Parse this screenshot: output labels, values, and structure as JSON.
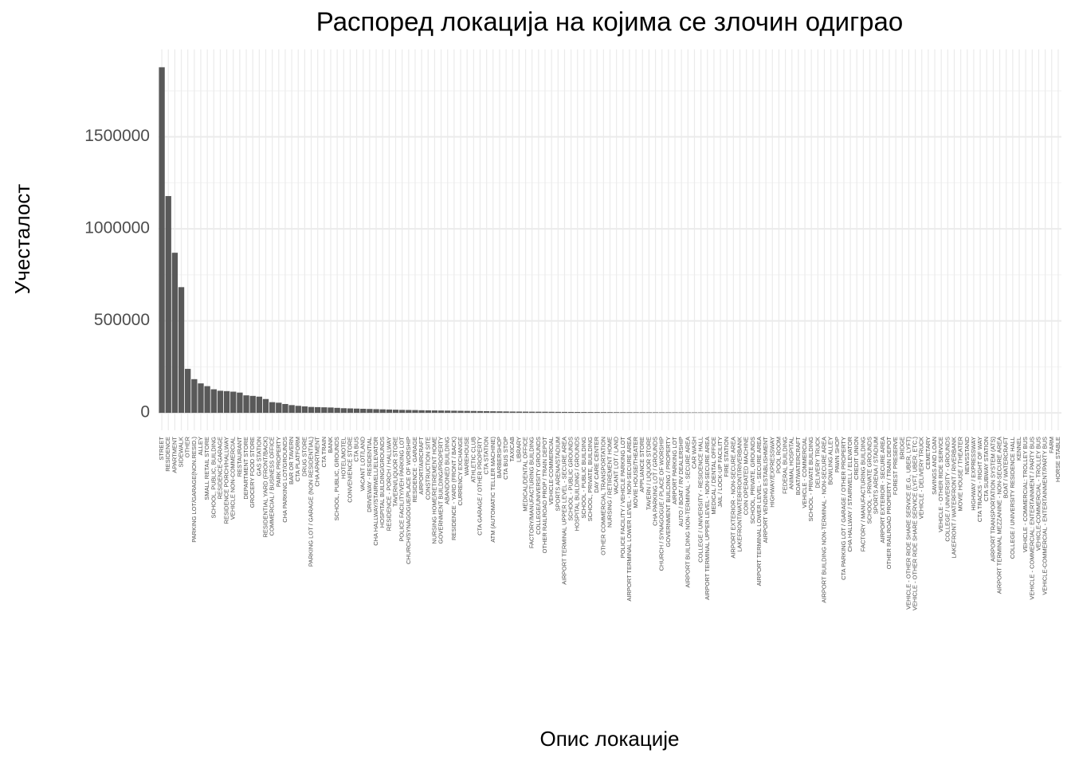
{
  "chart_data": {
    "type": "bar",
    "title": "Распоред локација на којима се злочин одиграо",
    "xlabel": "Опис локације",
    "ylabel": "Учесталост",
    "color": "#595959",
    "grid": true,
    "ylim": [
      -95000,
      1975000
    ],
    "yticks": [
      0,
      500000,
      1000000,
      1500000
    ],
    "categories": [
      "STREET",
      "RESIDENCE",
      "APARTMENT",
      "SIDEWALK",
      "OTHER",
      "PARKING LOT/GARAGE(NON.RESID.)",
      "ALLEY",
      "SMALL RETAIL STORE",
      "SCHOOL, PUBLIC, BUILDING",
      "RESIDENCE-GARAGE",
      "RESIDENCE PORCH/HALLWAY",
      "VEHICLE NON-COMMERCIAL",
      "RESTAURANT",
      "DEPARTMENT STORE",
      "GROCERY FOOD STORE",
      "GAS STATION",
      "RESIDENTIAL YARD (FRONT/BACK)",
      "COMMERCIAL / BUSINESS OFFICE",
      "PARK PROPERTY",
      "CHA PARKING LOT/GROUNDS",
      "BAR OR TAVERN",
      "CTA PLATFORM",
      "DRUG STORE",
      "PARKING LOT / GARAGE (NON RESIDENTIAL)",
      "CHA APARTMENT",
      "CTA TRAIN",
      "BANK",
      "SCHOOL, PUBLIC, GROUNDS",
      "HOTEL/MOTEL",
      "CONVENIENCE STORE",
      "CTA BUS",
      "VACANT LOT/LAND",
      "DRIVEWAY - RESIDENTIAL",
      "CHA HALLWAY/STAIRWELL/ELEVATOR",
      "HOSPITAL BUILDING/GROUNDS",
      "RESIDENCE - PORCH / HALLWAY",
      "TAVERN/LIQUOR STORE",
      "POLICE FACILITY/VEH PARKING LOT",
      "CHURCH/SYNAGOGUE/PLACE OF WORSHIP",
      "RESIDENCE - GARAGE",
      "AIRPORT/AIRCRAFT",
      "CONSTRUCTION SITE",
      "NURSING HOME/RETIREMENT HOME",
      "GOVERNMENT BUILDING/PROPERTY",
      "ABANDONED BUILDING",
      "RESIDENCE - YARD (FRONT / BACK)",
      "CURRENCY EXCHANGE",
      "WAREHOUSE",
      "ATHLETIC CLUB",
      "CTA GARAGE / OTHER PROPERTY",
      "CTA STATION",
      "ATM (AUTOMATIC TELLER MACHINE)",
      "BARBERSHOP",
      "CTA BUS STOP",
      "TAXICAB",
      "LIBRARY",
      "MEDICAL/DENTAL OFFICE",
      "FACTORY/MANUFACTURING BUILDING",
      "COLLEGE/UNIVERSITY GROUNDS",
      "OTHER RAILROAD PROP / TRAIN DEPOT",
      "VEHICLE-COMMERCIAL",
      "SPORTS ARENA/STADIUM",
      "AIRPORT TERMINAL UPPER LEVEL - SECURE AREA",
      "SCHOOL - PUBLIC GROUNDS",
      "HOSPITAL BUILDING / GROUNDS",
      "SCHOOL - PUBLIC BUILDING",
      "SCHOOL, PRIVATE, BUILDING",
      "DAY CARE CENTER",
      "OTHER COMMERCIAL TRANSPORTATION",
      "NURSING / RETIREMENT HOME",
      "VACANT LOT / LAND",
      "POLICE FACILITY / VEHICLE PARKING LOT",
      "AIRPORT TERMINAL LOWER LEVEL - NON-SECURE AREA",
      "MOVIE HOUSE/THEATER",
      "APPLIANCE STORE",
      "TAVERN / LIQUOR STORE",
      "CHA PARKING LOT / GROUNDS",
      "CHURCH / SYNAGOGUE / PLACE OF WORSHIP",
      "GOVERNMENT BUILDING / PROPERTY",
      "AIRPORT PARKING LOT",
      "AUTO / BOAT / RV DEALERSHIP",
      "AIRPORT BUILDING NON-TERMINAL - SECURE AREA",
      "CAR WASH",
      "COLLEGE / UNIVERSITY - RESIDENCE HALL",
      "AIRPORT TERMINAL UPPER LEVEL - NON-SECURE AREA",
      "MEDICAL / DENTAL OFFICE",
      "JAIL / LOCK-UP FACILITY",
      "FIRE STATION",
      "AIRPORT EXTERIOR - NON-SECURE AREA",
      "LAKEFRONT/WATERFRONT/RIVERBANK",
      "COIN OPERATED MACHINE",
      "SCHOOL, PRIVATE, GROUNDS",
      "AIRPORT TERMINAL LOWER LEVEL - SECURE AREA",
      "AIRPORT VENDING ESTABLISHMENT",
      "HIGHWAY/EXPRESSWAY",
      "POOL ROOM",
      "FEDERAL BUILDING",
      "ANIMAL HOSPITAL",
      "BOAT/WATERCRAFT",
      "VEHICLE - COMMERCIAL",
      "SCHOOL - PRIVATE BUILDING",
      "DELIVERY TRUCK",
      "AIRPORT BUILDING NON-TERMINAL - NON-SECURE AREA",
      "BOWLING ALLEY",
      "PAWN SHOP",
      "CTA PARKING LOT / GARAGE / OTHER PROPERTY",
      "CHA HALLWAY / STAIRWELL / ELEVATOR",
      "CREDIT UNION",
      "FACTORY / MANUFACTURING BUILDING",
      "SCHOOL - PRIVATE GROUNDS",
      "SPORTS ARENA / STADIUM",
      "AIRPORT EXTERIOR - SECURE AREA",
      "OTHER RAILROAD PROPERTY / TRAIN DEPOT",
      "FOREST PRESERVE",
      "BRIDGE",
      "VEHICLE - OTHER RIDE SHARE SERVICE (E.G., UBER, LYFT)",
      "VEHICLE - OTHER RIDE SHARE SERVICE (LYFT, UBER, ETC.)",
      "VEHICLE - DELIVERY TRUCK",
      "CEMETARY",
      "SAVINGS AND LOAN",
      "VEHICLE - OTHER RIDE SERVICE",
      "COLLEGE / UNIVERSITY - GROUNDS",
      "LAKEFRONT / WATERFRONT / RIVERBANK",
      "MOVIE HOUSE / THEATER",
      "NEWSSTAND",
      "HIGHWAY / EXPRESSWAY",
      "CTA TRACKS - RIGHT OF WAY",
      "CTA SUBWAY STATION",
      "AIRPORT TRANSPORTATION SYSTEM (ATS)",
      "AIRPORT TERMINAL MEZZANINE - NON-SECURE AREA",
      "BOAT / WATERCRAFT",
      "COLLEGE / UNIVERSITY RESIDENCE HALL",
      "KENNEL",
      "VEHICLE - COMMERCIAL: TROLLEY BUS",
      "VEHICLE - COMMERCIAL: ENTERTAINMENT / PARTY BUS",
      "VEHICLE-COMMERCIAL - TROLLEY BUS",
      "VEHICLE-COMMERCIAL - ENTERTAINMENT/PARTY BUS",
      "FARM",
      "HORSE STABLE"
    ],
    "values": [
      1878000,
      1178000,
      870000,
      683000,
      239000,
      183000,
      160000,
      145000,
      128000,
      120000,
      118000,
      115000,
      110000,
      95000,
      92000,
      88000,
      75000,
      58000,
      55000,
      48000,
      42000,
      38000,
      35000,
      32000,
      31000,
      30000,
      29000,
      27000,
      25000,
      24000,
      23000,
      22000,
      21000,
      20000,
      19000,
      18000,
      17000,
      16000,
      15500,
      15000,
      14000,
      13500,
      13000,
      12500,
      12000,
      11500,
      11000,
      10500,
      10000,
      9500,
      9000,
      8500,
      8000,
      7500,
      7000,
      6800,
      6500,
      6200,
      6000,
      5800,
      5500,
      5200,
      5000,
      4800,
      4600,
      4400,
      4200,
      4000,
      3800,
      3600,
      3400,
      3200,
      3000,
      2900,
      2800,
      2700,
      2600,
      2500,
      2400,
      2300,
      2200,
      2100,
      2000,
      1900,
      1800,
      1700,
      1600,
      1500,
      1400,
      1300,
      1250,
      1200,
      1150,
      1100,
      1050,
      1000,
      950,
      900,
      850,
      800,
      760,
      720,
      680,
      640,
      600,
      560,
      520,
      480,
      440,
      400,
      380,
      360,
      340,
      320,
      300,
      280,
      260,
      240,
      220,
      200,
      180,
      160,
      140,
      120,
      100,
      90,
      80,
      70,
      60,
      50,
      40,
      30,
      20,
      10,
      5,
      4,
      3,
      2,
      1
    ]
  }
}
